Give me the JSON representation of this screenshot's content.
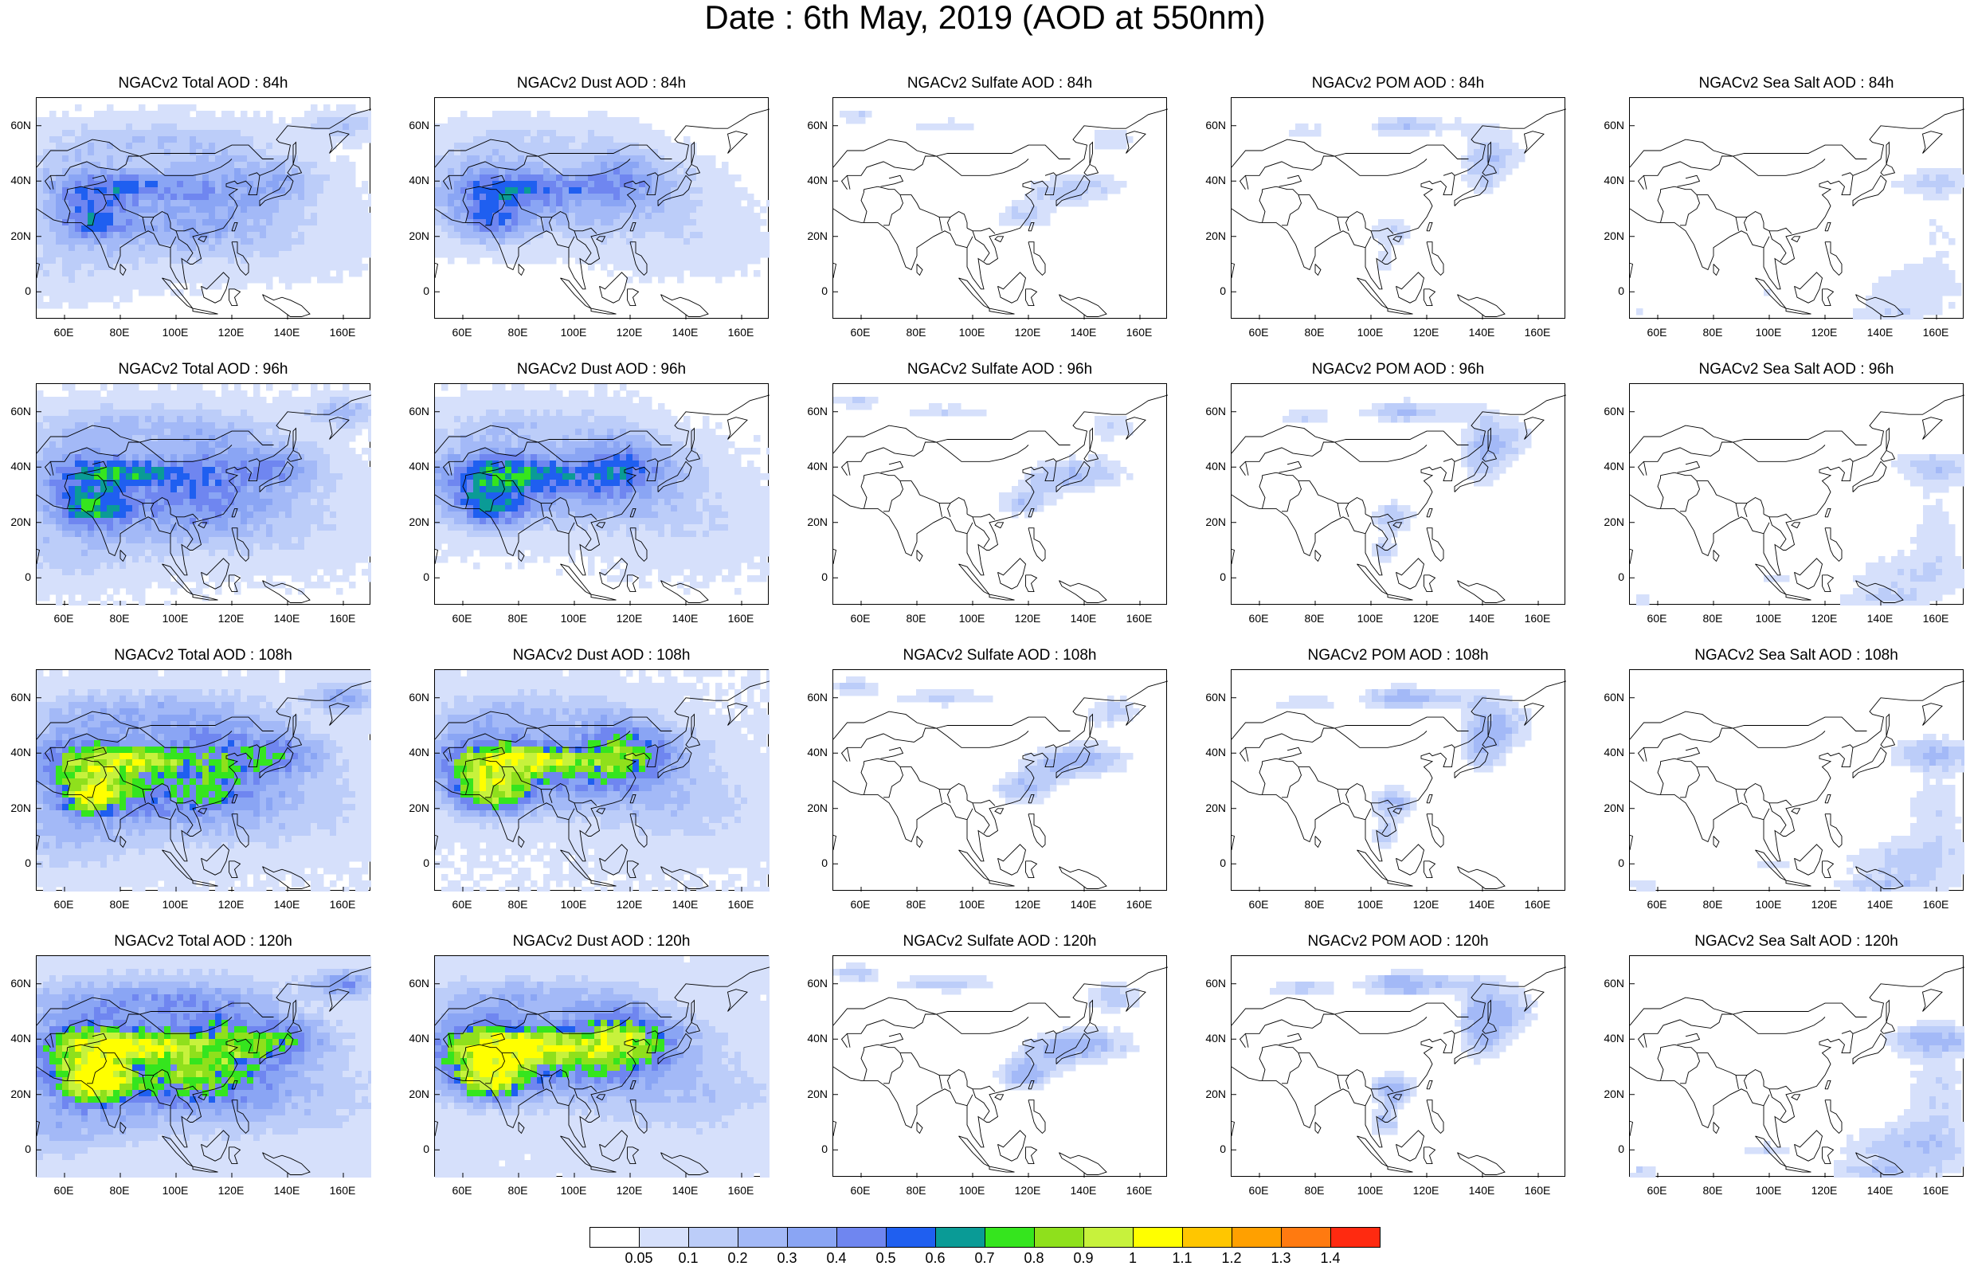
{
  "title": "Date : 6th May, 2019 (AOD at 550nm)",
  "map": {
    "lon_range": [
      50,
      170
    ],
    "lat_range": [
      -10,
      70
    ],
    "lat_ticks": [
      {
        "value": 60,
        "label": "60N"
      },
      {
        "value": 40,
        "label": "40N"
      },
      {
        "value": 20,
        "label": "20N"
      },
      {
        "value": 0,
        "label": "0"
      }
    ],
    "lon_ticks": [
      {
        "value": 60,
        "label": "60E"
      },
      {
        "value": 80,
        "label": "80E"
      },
      {
        "value": 100,
        "label": "100E"
      },
      {
        "value": 120,
        "label": "120E"
      },
      {
        "value": 140,
        "label": "140E"
      },
      {
        "value": 160,
        "label": "160E"
      }
    ]
  },
  "panels": [
    [
      {
        "title": "NGACv2 Total AOD : 84h"
      },
      {
        "title": "NGACv2 Dust AOD : 84h"
      },
      {
        "title": "NGACv2 Sulfate AOD : 84h"
      },
      {
        "title": "NGACv2 POM AOD : 84h"
      },
      {
        "title": "NGACv2 Sea Salt AOD : 84h"
      }
    ],
    [
      {
        "title": "NGACv2 Total AOD : 96h"
      },
      {
        "title": "NGACv2 Dust AOD : 96h"
      },
      {
        "title": "NGACv2 Sulfate AOD : 96h"
      },
      {
        "title": "NGACv2 POM AOD : 96h"
      },
      {
        "title": "NGACv2 Sea Salt AOD : 96h"
      }
    ],
    [
      {
        "title": "NGACv2 Total AOD : 108h"
      },
      {
        "title": "NGACv2 Dust AOD : 108h"
      },
      {
        "title": "NGACv2 Sulfate AOD : 108h"
      },
      {
        "title": "NGACv2 POM AOD : 108h"
      },
      {
        "title": "NGACv2 Sea Salt AOD : 108h"
      }
    ],
    [
      {
        "title": "NGACv2 Total AOD : 120h"
      },
      {
        "title": "NGACv2 Dust AOD : 120h"
      },
      {
        "title": "NGACv2 Sulfate AOD : 120h"
      },
      {
        "title": "NGACv2 POM AOD : 120h"
      },
      {
        "title": "NGACv2 Sea Salt  AOD : 120h"
      }
    ]
  ],
  "colorbar": {
    "colors": [
      "#ffffff",
      "#d6e0fb",
      "#bccdf9",
      "#a3b9f7",
      "#8aa5f4",
      "#6f86f0",
      "#1f5ff0",
      "#0a9b96",
      "#35e51e",
      "#8fe01c",
      "#c7f23c",
      "#ffff00",
      "#ffc600",
      "#ffa000",
      "#ff7a10",
      "#ff2a10"
    ],
    "labels": [
      "0.05",
      "0.1",
      "0.2",
      "0.3",
      "0.4",
      "0.5",
      "0.6",
      "0.7",
      "0.8",
      "0.9",
      "1",
      "1.1",
      "1.2",
      "1.3",
      "1.4"
    ]
  }
}
